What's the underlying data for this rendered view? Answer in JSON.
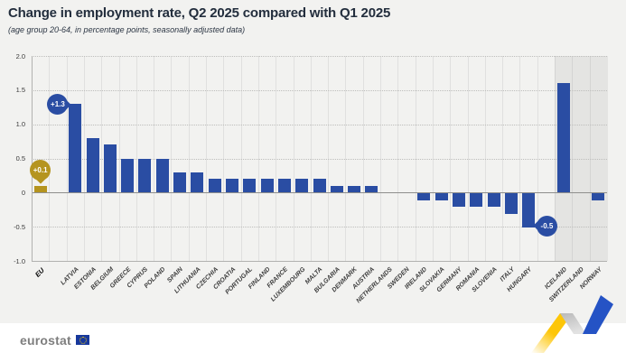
{
  "title": "Change in employment rate, Q2 2025 compared with Q1 2025",
  "subtitle": "(age group 20-64, in percentage points, seasonally adjusted data)",
  "footer": {
    "brand": "eurostat"
  },
  "colors": {
    "bar_blue": "#2a4da3",
    "bar_gold": "#b5941f",
    "badge_blue": "#2a4da3",
    "badge_gold": "#b5941f",
    "background": "#f2f2f0",
    "efta_shade": "#e4e4e2",
    "ribbon_yellow": "#fdc608",
    "ribbon_blue": "#2553c5",
    "ribbon_gray": "#c3c3c3"
  },
  "chart_data": {
    "type": "bar",
    "title": "Change in employment rate, Q2 2025 compared with Q1 2025",
    "subtitle": "(age group 20-64, in percentage points, seasonally adjusted data)",
    "ylim": [
      -1.0,
      2.0
    ],
    "ytick_labels": [
      "2.0",
      "1.5",
      "1.0",
      "0.5",
      "0",
      "-0.5",
      "-1.0"
    ],
    "ytick_values": [
      2.0,
      1.5,
      1.0,
      0.5,
      0,
      -0.5,
      -1.0
    ],
    "grid": "dotted horizontal",
    "categories": [
      {
        "label": "EU",
        "value": 0.1,
        "group": "eu-aggregate"
      },
      {
        "label": "LATVIA",
        "value": 1.3,
        "group": "eu-member"
      },
      {
        "label": "ESTONIA",
        "value": 0.8,
        "group": "eu-member"
      },
      {
        "label": "BELGIUM",
        "value": 0.7,
        "group": "eu-member"
      },
      {
        "label": "GREECE",
        "value": 0.5,
        "group": "eu-member"
      },
      {
        "label": "CYPRUS",
        "value": 0.5,
        "group": "eu-member"
      },
      {
        "label": "POLAND",
        "value": 0.5,
        "group": "eu-member"
      },
      {
        "label": "SPAIN",
        "value": 0.3,
        "group": "eu-member"
      },
      {
        "label": "LITHUANIA",
        "value": 0.3,
        "group": "eu-member"
      },
      {
        "label": "CZECHIA",
        "value": 0.2,
        "group": "eu-member"
      },
      {
        "label": "CROATIA",
        "value": 0.2,
        "group": "eu-member"
      },
      {
        "label": "PORTUGAL",
        "value": 0.2,
        "group": "eu-member"
      },
      {
        "label": "FINLAND",
        "value": 0.2,
        "group": "eu-member"
      },
      {
        "label": "FRANCE",
        "value": 0.2,
        "group": "eu-member"
      },
      {
        "label": "LUXEMBOURG",
        "value": 0.2,
        "group": "eu-member"
      },
      {
        "label": "MALTA",
        "value": 0.2,
        "group": "eu-member"
      },
      {
        "label": "BULGARIA",
        "value": 0.1,
        "group": "eu-member"
      },
      {
        "label": "DENMARK",
        "value": 0.1,
        "group": "eu-member"
      },
      {
        "label": "AUSTRIA",
        "value": 0.1,
        "group": "eu-member"
      },
      {
        "label": "NETHERLANDS",
        "value": 0.0,
        "group": "eu-member"
      },
      {
        "label": "SWEDEN",
        "value": 0.0,
        "group": "eu-member"
      },
      {
        "label": "IRELAND",
        "value": -0.1,
        "group": "eu-member"
      },
      {
        "label": "SLOVAKIA",
        "value": -0.1,
        "group": "eu-member"
      },
      {
        "label": "GERMANY",
        "value": -0.2,
        "group": "eu-member"
      },
      {
        "label": "ROMANIA",
        "value": -0.2,
        "group": "eu-member"
      },
      {
        "label": "SLOVENIA",
        "value": -0.2,
        "group": "eu-member"
      },
      {
        "label": "ITALY",
        "value": -0.3,
        "group": "eu-member"
      },
      {
        "label": "HUNGARY",
        "value": -0.5,
        "group": "eu-member"
      },
      {
        "label": "ICELAND",
        "value": 1.6,
        "group": "efta"
      },
      {
        "label": "SWITZERLAND",
        "value": 0.0,
        "group": "efta"
      },
      {
        "label": "NORWAY",
        "value": -0.1,
        "group": "efta"
      }
    ],
    "gap_after": [
      "EU",
      "HUNGARY"
    ],
    "shaded_group": "efta",
    "annotations": [
      {
        "text": "+0.1",
        "category": "EU",
        "placement": "above",
        "color_key": "badge_gold"
      },
      {
        "text": "+1.3",
        "category": "LATVIA",
        "placement": "left",
        "color_key": "badge_blue"
      },
      {
        "text": "-0.5",
        "category": "HUNGARY",
        "placement": "right",
        "color_key": "badge_blue"
      }
    ]
  }
}
